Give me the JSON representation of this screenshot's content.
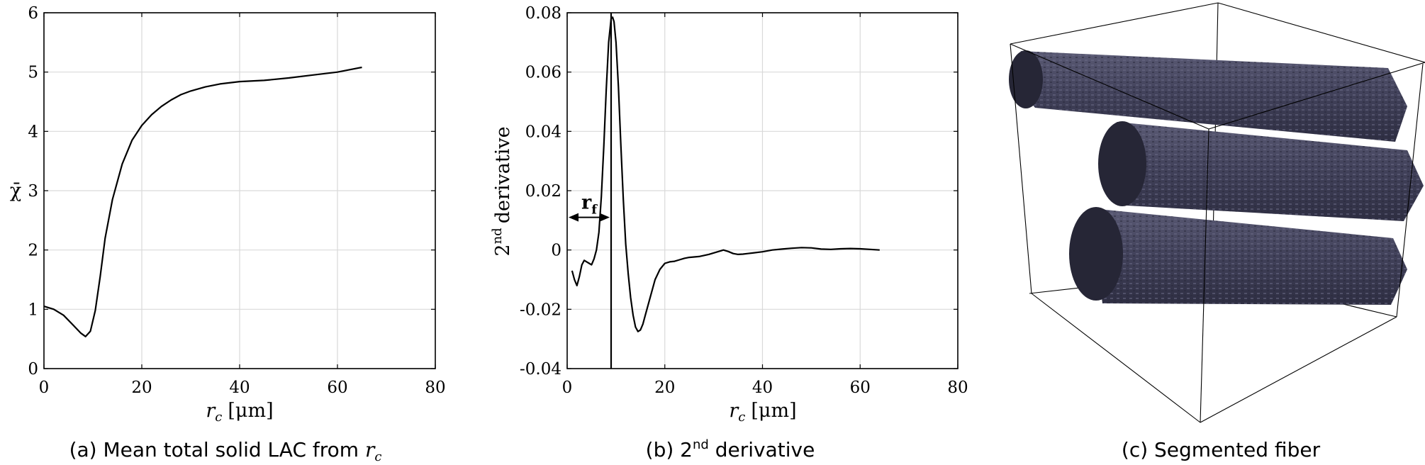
{
  "chart_data": [
    {
      "type": "line",
      "caption_prefix": "(a) Mean total solid LAC from ",
      "caption_var": "r",
      "caption_sub": "c",
      "ylabel": "χ̄",
      "xlabel_var": "r",
      "xlabel_sub": "c",
      "xlabel_unit": "[μm]",
      "xlim": [
        0,
        80
      ],
      "ylim": [
        0,
        6
      ],
      "xticks": [
        "0",
        "20",
        "40",
        "60",
        "80"
      ],
      "yticks": [
        "0",
        "1",
        "2",
        "3",
        "4",
        "5",
        "6"
      ],
      "grid": true,
      "series": [
        {
          "x": [
            0,
            2,
            4,
            6,
            7.5,
            8.5,
            9.5,
            10.5,
            11.5,
            12.5,
            14,
            16,
            18,
            20,
            22,
            24,
            26,
            28,
            30,
            33,
            36,
            40,
            45,
            50,
            55,
            60,
            65
          ],
          "y": [
            1.05,
            1.0,
            0.9,
            0.73,
            0.6,
            0.54,
            0.63,
            0.98,
            1.55,
            2.2,
            2.85,
            3.45,
            3.85,
            4.1,
            4.28,
            4.42,
            4.53,
            4.62,
            4.68,
            4.75,
            4.8,
            4.84,
            4.86,
            4.9,
            4.95,
            5.0,
            5.08
          ]
        }
      ]
    },
    {
      "type": "line",
      "caption_prefix": "(b) 2",
      "caption_sup": "nd",
      "caption_suffix": " derivative",
      "ylabel_base": "2",
      "ylabel_sup": "nd",
      "ylabel_rest": "derivative",
      "xlabel_var": "r",
      "xlabel_sub": "c",
      "xlabel_unit": "[μm]",
      "xlim": [
        0,
        80
      ],
      "ylim": [
        -0.04,
        0.08
      ],
      "xticks": [
        "0",
        "20",
        "40",
        "60",
        "80"
      ],
      "yticks": [
        "-0.04",
        "-0.02",
        "0",
        "0.02",
        "0.04",
        "0.06",
        "0.08"
      ],
      "grid": true,
      "vline_x": 9,
      "annotation_main": "r",
      "annotation_sub": "f",
      "series": [
        {
          "x": [
            1,
            1.5,
            2,
            2.5,
            3,
            3.5,
            4,
            4.5,
            5,
            5.5,
            6,
            6.5,
            7,
            7.5,
            8,
            8.5,
            9,
            9.3,
            9.6,
            10,
            10.5,
            11,
            11.5,
            12,
            12.5,
            13,
            13.5,
            14,
            14.5,
            15,
            15.5,
            16,
            17,
            18,
            19,
            20,
            21,
            22,
            23,
            24,
            25,
            27,
            29,
            31,
            32,
            33,
            34,
            35,
            36,
            37,
            38,
            40,
            42,
            44,
            46,
            48,
            50,
            52,
            54,
            56,
            58,
            60,
            62,
            64
          ],
          "y": [
            -0.007,
            -0.01,
            -0.012,
            -0.009,
            -0.005,
            -0.0035,
            -0.004,
            -0.0045,
            -0.005,
            -0.003,
            0.0,
            0.006,
            0.018,
            0.035,
            0.054,
            0.07,
            0.078,
            0.0785,
            0.077,
            0.07,
            0.055,
            0.035,
            0.017,
            0.002,
            -0.008,
            -0.016,
            -0.022,
            -0.026,
            -0.0275,
            -0.027,
            -0.025,
            -0.022,
            -0.016,
            -0.01,
            -0.0065,
            -0.0045,
            -0.004,
            -0.0038,
            -0.0033,
            -0.0028,
            -0.0025,
            -0.0022,
            -0.0015,
            -0.0005,
            0.0,
            -0.0005,
            -0.0012,
            -0.0015,
            -0.0014,
            -0.0012,
            -0.001,
            -0.0006,
            0.0,
            0.0003,
            0.0006,
            0.0008,
            0.0007,
            0.0003,
            0.0002,
            0.0004,
            0.0005,
            0.0004,
            0.0002,
            0.0
          ]
        }
      ]
    }
  ],
  "panel_c": {
    "caption": "(c) Segmented fiber",
    "fiber_color": "#3f3f57"
  }
}
